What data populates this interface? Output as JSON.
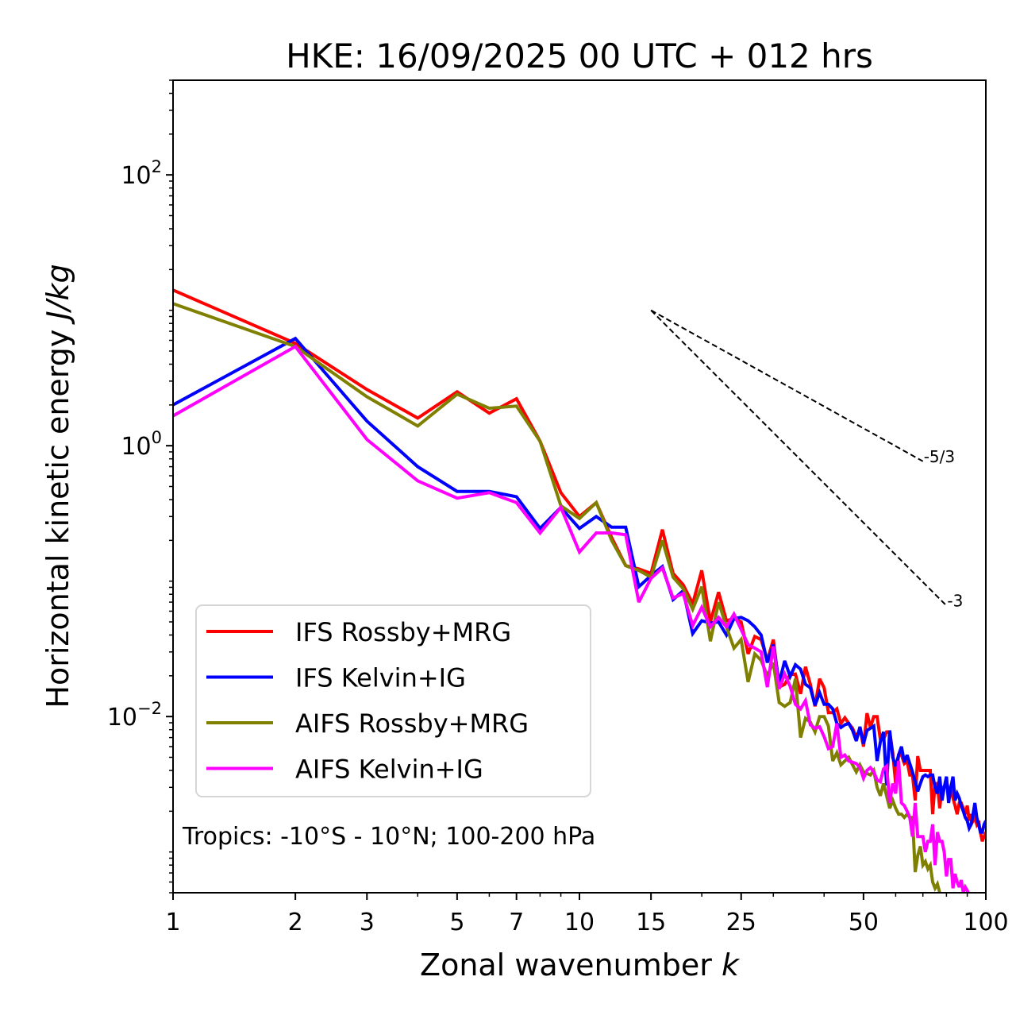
{
  "chart_data": {
    "type": "line",
    "title": "HKE: 16/09/2025 00 UTC + 012 hrs",
    "xlabel": "Zonal wavenumber",
    "xlabel_italic": "k",
    "ylabel": "Horizontal kinetic energy",
    "ylabel_italic": "J/kg",
    "xscale": "log",
    "yscale": "log",
    "xlim": [
      1,
      100
    ],
    "ylim": [
      0.0005,
      500
    ],
    "grid": false,
    "x_ticks": [
      1,
      2,
      3,
      5,
      7,
      10,
      15,
      25,
      50,
      100
    ],
    "x_tick_labels": [
      "1",
      "2",
      "3",
      "5",
      "7",
      "10",
      "15",
      "25",
      "50",
      "100"
    ],
    "y_ticks": [
      {
        "value": 100,
        "base": "10",
        "exp": "2"
      },
      {
        "value": 1,
        "base": "10",
        "exp": "0"
      },
      {
        "value": 0.01,
        "base": "10",
        "exp": "−2"
      }
    ],
    "legend_position": "lower-left",
    "annotation": "Tropics: -10°S - 10°N; 100-200 hPa",
    "reference_lines": [
      {
        "label": "-5/3",
        "slope": -1.6667,
        "k_start": 15,
        "k_end": 70,
        "e_start": 10
      },
      {
        "label": "-3",
        "slope": -3,
        "k_start": 15,
        "k_end": 80,
        "e_start": 10
      }
    ],
    "x": [
      1,
      2,
      3,
      4,
      5,
      6,
      7,
      8,
      9,
      10,
      11,
      12,
      13,
      14,
      15,
      16,
      17,
      18,
      19,
      20,
      21,
      22,
      23,
      24,
      25,
      26,
      27,
      28,
      29,
      30,
      31,
      32,
      33,
      34,
      35,
      36,
      37,
      38,
      39,
      40,
      41,
      42,
      43,
      44,
      45,
      46,
      47,
      48,
      49,
      50,
      51,
      52,
      53,
      54,
      55,
      56,
      57,
      58,
      59,
      60,
      61,
      62,
      63,
      64,
      65,
      66,
      67,
      68,
      69,
      70,
      71,
      72,
      73,
      74,
      75,
      76,
      77,
      78,
      79,
      80,
      81,
      82,
      83,
      84,
      85,
      86,
      87,
      88,
      89,
      90,
      91,
      92,
      93,
      94,
      95,
      96,
      97,
      98,
      99,
      100
    ],
    "series": [
      {
        "name": "IFS Rossby+MRG",
        "color": "#ff0000",
        "values": [
          14.1,
          5.7,
          2.6,
          1.6,
          2.5,
          1.74,
          2.22,
          1.08,
          0.45,
          0.3,
          0.38,
          0.21,
          0.13,
          0.123,
          0.114,
          0.24,
          0.114,
          0.094,
          0.068,
          0.12,
          0.05,
          0.083,
          0.051,
          0.053,
          0.05,
          0.029,
          0.039,
          0.037,
          0.026,
          0.037,
          0.0165,
          0.0173,
          0.0204,
          0.0206,
          0.0147,
          0.0233,
          0.0173,
          0.0119,
          0.019,
          0.0163,
          0.0107,
          0.0107,
          0.0114,
          0.0089,
          0.0098,
          0.0089,
          0.0082,
          0.007,
          0.0082,
          0.006,
          0.0106,
          0.0083,
          0.01,
          0.01,
          0.0068,
          0.0068,
          0.0077,
          0.0077,
          0.0054,
          0.0032,
          0.0052,
          0.0052,
          0.0045,
          0.0047,
          0.0037,
          0.0037,
          0.0024,
          0.0051,
          0.004,
          0.004,
          0.004,
          0.004,
          0.004,
          0.0019,
          0.0032,
          0.0032,
          0.0021,
          0.003,
          0.003,
          0.0033,
          0.0029,
          0.0029,
          0.0025,
          0.0022,
          0.0019,
          0.0023,
          0.0023,
          0.0021,
          0.0019,
          0.0022,
          0.0017,
          0.0019,
          0.0017,
          0.0018,
          0.0016,
          0.0017,
          0.0014,
          0.0012,
          0.0013,
          0.0014
        ]
      },
      {
        "name": "IFS Kelvin+IG",
        "color": "#0000ff",
        "values": [
          2.0,
          6.2,
          1.52,
          0.7,
          0.46,
          0.46,
          0.42,
          0.245,
          0.35,
          0.245,
          0.3,
          0.25,
          0.25,
          0.091,
          0.11,
          0.128,
          0.073,
          0.085,
          0.041,
          0.051,
          0.049,
          0.05,
          0.04,
          0.053,
          0.054,
          0.051,
          0.046,
          0.04,
          0.025,
          0.034,
          0.0177,
          0.0258,
          0.0198,
          0.0241,
          0.0224,
          0.0173,
          0.0163,
          0.0121,
          0.015,
          0.0123,
          0.0123,
          0.0114,
          0.0089,
          0.0083,
          0.0087,
          0.0089,
          0.0079,
          0.0066,
          0.0084,
          0.0063,
          0.0079,
          0.0082,
          0.0085,
          0.0047,
          0.0065,
          0.0077,
          0.0031,
          0.0079,
          0.005,
          0.0043,
          0.0052,
          0.006,
          0.0046,
          0.0052,
          0.0045,
          0.0039,
          0.0033,
          0.0028,
          0.0032,
          0.0036,
          0.0037,
          0.0036,
          0.0037,
          0.0037,
          0.003,
          0.0027,
          0.0036,
          0.0024,
          0.003,
          0.0036,
          0.0023,
          0.003,
          0.0036,
          0.0024,
          0.0027,
          0.0025,
          0.0022,
          0.002,
          0.0018,
          0.0017,
          0.0015,
          0.0016,
          0.0019,
          0.0023,
          0.0018,
          0.0016,
          0.0014,
          0.0014,
          0.0016,
          0.0017
        ]
      },
      {
        "name": "AIFS Rossby+MRG",
        "color": "#808000",
        "values": [
          11.2,
          5.4,
          2.3,
          1.4,
          2.4,
          1.89,
          1.96,
          1.08,
          0.36,
          0.29,
          0.38,
          0.2,
          0.13,
          0.12,
          0.107,
          0.2,
          0.107,
          0.088,
          0.062,
          0.091,
          0.036,
          0.07,
          0.046,
          0.032,
          0.037,
          0.018,
          0.029,
          0.026,
          0.02,
          0.025,
          0.0127,
          0.0119,
          0.0127,
          0.019,
          0.007,
          0.0097,
          0.0091,
          0.0077,
          0.01,
          0.01,
          0.0085,
          0.0047,
          0.0054,
          0.0044,
          0.0047,
          0.005,
          0.0044,
          0.0039,
          0.0044,
          0.0039,
          0.0038,
          0.0037,
          0.004,
          0.003,
          0.0026,
          0.0032,
          0.0026,
          0.0021,
          0.0024,
          0.0021,
          0.0019,
          0.0019,
          0.0018,
          0.0019,
          0.0018,
          0.0018,
          0.00071,
          0.00094,
          0.0011,
          0.0008,
          0.00085,
          0.00075,
          0.0008,
          0.0006,
          0.00054,
          0.00058,
          0.0005,
          0.00046,
          0.00045,
          0.00042,
          0.0004,
          0.0004,
          0.00038,
          0.00036,
          0.00035,
          0.00034,
          0.00033,
          0.00032,
          0.00031,
          0.0003,
          0.00029,
          0.00028,
          0.00028,
          0.00027,
          0.00026,
          0.00026,
          0.00025,
          0.00025,
          0.00024,
          0.00024
        ]
      },
      {
        "name": "AIFS Kelvin+IG",
        "color": "#ff00ff",
        "values": [
          1.66,
          5.4,
          1.11,
          0.55,
          0.41,
          0.45,
          0.38,
          0.227,
          0.35,
          0.164,
          0.227,
          0.227,
          0.22,
          0.07,
          0.105,
          0.125,
          0.075,
          0.081,
          0.047,
          0.064,
          0.046,
          0.054,
          0.046,
          0.057,
          0.044,
          0.034,
          0.032,
          0.03,
          0.0165,
          0.033,
          0.016,
          0.0206,
          0.0167,
          0.0123,
          0.0114,
          0.0131,
          0.0087,
          0.0082,
          0.0084,
          0.0071,
          0.0058,
          0.006,
          0.0089,
          0.005,
          0.0052,
          0.0047,
          0.0046,
          0.0045,
          0.0042,
          0.0035,
          0.004,
          0.0042,
          0.0039,
          0.0034,
          0.0033,
          0.0041,
          0.0043,
          0.0023,
          0.0032,
          0.0027,
          0.0047,
          0.0023,
          0.0022,
          0.002,
          0.0018,
          0.0013,
          0.0023,
          0.0013,
          0.0013,
          0.0013,
          0.001,
          0.0012,
          0.0012,
          0.0016,
          0.0008,
          0.0014,
          0.0012,
          0.0012,
          0.001,
          0.00066,
          0.00088,
          0.00088,
          0.00054,
          0.00069,
          0.0006,
          0.00055,
          0.00062,
          0.0005,
          0.00055,
          0.00052,
          0.00048,
          0.00045,
          0.00047,
          0.00044,
          0.00042,
          0.0004,
          0.00042,
          0.00039,
          0.0004,
          0.00038
        ]
      }
    ]
  }
}
